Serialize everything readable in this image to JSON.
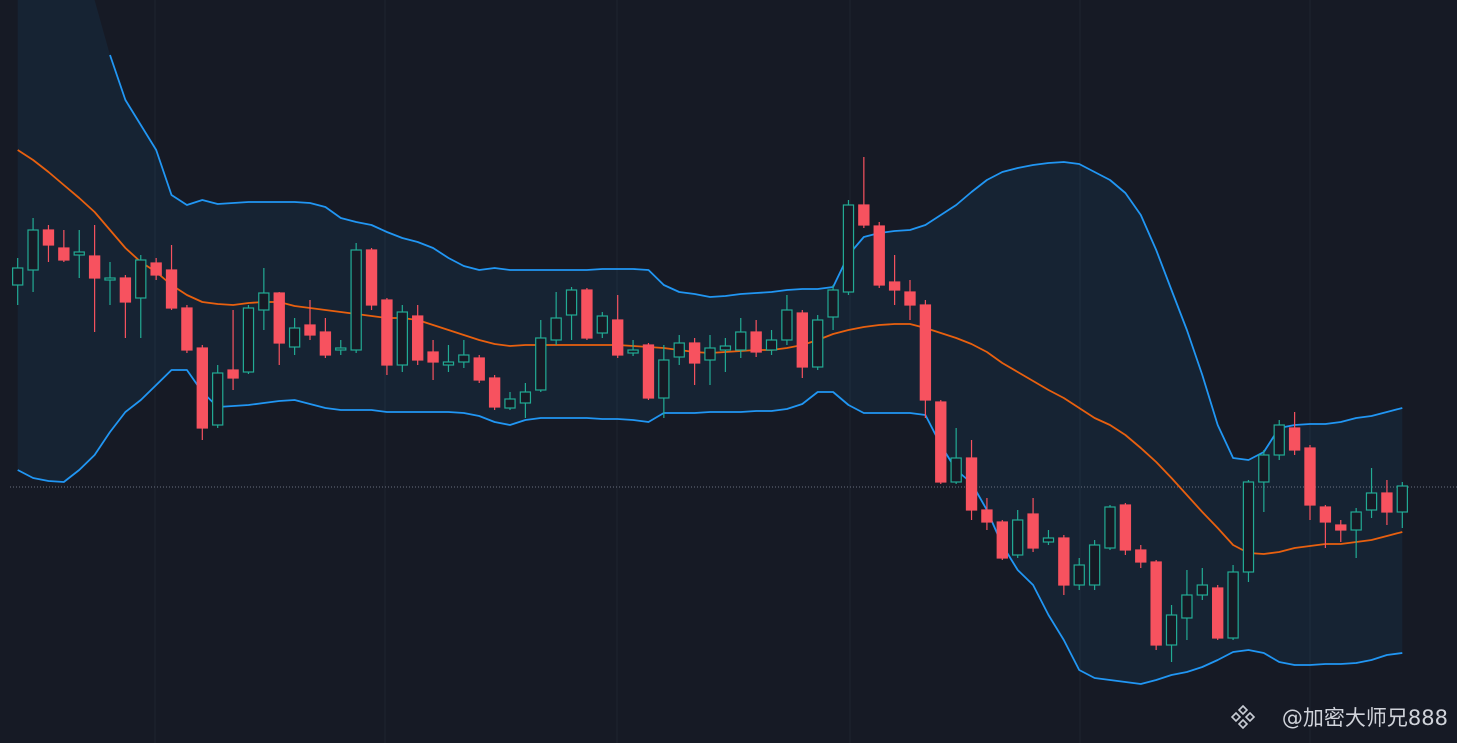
{
  "chart_data": {
    "type": "candlestick",
    "open": [
      458,
      473,
      513,
      495,
      488,
      487,
      463,
      465,
      445,
      480,
      473,
      435,
      395,
      318,
      373,
      371,
      433,
      450,
      396,
      418,
      411,
      393,
      393,
      493,
      443,
      378,
      427,
      391,
      378,
      381,
      385,
      365,
      335,
      340,
      353,
      403,
      428,
      453,
      410,
      423,
      390,
      398,
      345,
      386,
      400,
      383,
      393,
      393,
      411,
      393,
      403,
      430,
      376,
      426,
      451,
      538,
      517,
      461,
      451,
      438,
      341,
      261,
      285,
      233,
      221,
      188,
      229,
      201,
      205,
      158,
      158,
      195,
      238,
      193,
      181,
      98,
      125,
      148,
      155,
      105,
      171,
      261,
      288,
      315,
      295,
      236,
      218,
      213,
      233,
      250,
      231
    ],
    "high": [
      485,
      525,
      518,
      513,
      513,
      518,
      481,
      468,
      488,
      485,
      498,
      438,
      398,
      378,
      433,
      438,
      475,
      451,
      425,
      443,
      425,
      403,
      500,
      495,
      445,
      438,
      438,
      403,
      398,
      403,
      388,
      368,
      351,
      360,
      423,
      451,
      456,
      455,
      431,
      448,
      403,
      400,
      398,
      408,
      405,
      408,
      405,
      425,
      423,
      413,
      448,
      433,
      428,
      458,
      543,
      586,
      521,
      488,
      463,
      443,
      343,
      315,
      303,
      245,
      223,
      233,
      245,
      213,
      208,
      185,
      203,
      238,
      240,
      198,
      183,
      138,
      173,
      175,
      158,
      178,
      263,
      293,
      323,
      331,
      298,
      238,
      223,
      235,
      275,
      263,
      261
    ],
    "low": [
      438,
      451,
      481,
      481,
      465,
      411,
      438,
      405,
      405,
      463,
      433,
      390,
      303,
      315,
      353,
      369,
      413,
      378,
      388,
      403,
      385,
      388,
      390,
      433,
      368,
      371,
      378,
      363,
      371,
      375,
      360,
      333,
      333,
      325,
      351,
      398,
      403,
      403,
      405,
      385,
      387,
      343,
      325,
      378,
      358,
      358,
      371,
      385,
      386,
      388,
      398,
      365,
      373,
      413,
      448,
      515,
      455,
      438,
      423,
      325,
      259,
      259,
      223,
      213,
      183,
      185,
      191,
      198,
      148,
      153,
      153,
      193,
      188,
      175,
      93,
      81,
      103,
      143,
      103,
      103,
      161,
      231,
      283,
      288,
      223,
      195,
      201,
      185,
      225,
      218,
      215
    ],
    "close": [
      475,
      513,
      498,
      483,
      491,
      465,
      465,
      441,
      483,
      468,
      435,
      393,
      315,
      370,
      365,
      435,
      450,
      400,
      415,
      408,
      388,
      395,
      493,
      438,
      378,
      431,
      383,
      381,
      381,
      388,
      363,
      336,
      344,
      351,
      405,
      425,
      453,
      405,
      427,
      388,
      393,
      345,
      383,
      400,
      380,
      395,
      397,
      411,
      391,
      403,
      433,
      376,
      423,
      453,
      538,
      518,
      458,
      453,
      438,
      343,
      261,
      285,
      233,
      221,
      185,
      223,
      195,
      205,
      158,
      178,
      198,
      236,
      193,
      181,
      98,
      128,
      148,
      158,
      105,
      171,
      261,
      288,
      318,
      293,
      238,
      221,
      213,
      231,
      250,
      231,
      257
    ],
    "up_color": "#22ab94",
    "down_color": "#f7525f",
    "series": [
      {
        "color": "#2196f3",
        "values": [
          null,
          null,
          null,
          null,
          null,
          null,
          688,
          643,
          618,
          593,
          548,
          538,
          543,
          539,
          540,
          541,
          541,
          541,
          541,
          540,
          536,
          525,
          521,
          518,
          511,
          505,
          501,
          495,
          485,
          477,
          473,
          475,
          473,
          473,
          473,
          473,
          473,
          473,
          474,
          474,
          474,
          473,
          458,
          451,
          449,
          446,
          447,
          449,
          450,
          451,
          453,
          454,
          454,
          456,
          488,
          506,
          510,
          512,
          513,
          518,
          528,
          538,
          551,
          563,
          571,
          575,
          578,
          580,
          581,
          579,
          571,
          563,
          550,
          528,
          493,
          453,
          413,
          368,
          318,
          285,
          283,
          291,
          315,
          318,
          319,
          319,
          321,
          325,
          327,
          331,
          335
        ]
      },
      {
        "color": "#e8600f",
        "values": [
          593,
          583,
          571,
          558,
          545,
          531,
          513,
          495,
          481,
          471,
          458,
          448,
          441,
          439,
          438,
          440,
          441,
          441,
          437,
          435,
          433,
          431,
          429,
          427,
          425,
          425,
          423,
          418,
          413,
          408,
          403,
          399,
          397,
          398,
          398,
          398,
          398,
          398,
          398,
          398,
          397,
          396,
          395,
          393,
          391,
          390,
          391,
          392,
          393,
          393,
          395,
          398,
          403,
          409,
          413,
          416,
          418,
          419,
          419,
          415,
          410,
          405,
          399,
          391,
          380,
          371,
          362,
          353,
          345,
          335,
          325,
          318,
          308,
          295,
          281,
          265,
          248,
          231,
          215,
          198,
          190,
          189,
          191,
          195,
          197,
          199,
          199,
          201,
          203,
          207,
          211
        ]
      },
      {
        "color": "#2196f3",
        "values": [
          273,
          265,
          262,
          261,
          273,
          288,
          311,
          331,
          343,
          358,
          373,
          373,
          351,
          336,
          337,
          338,
          340,
          342,
          343,
          339,
          335,
          333,
          333,
          333,
          331,
          331,
          331,
          331,
          331,
          330,
          327,
          321,
          318,
          323,
          325,
          325,
          325,
          325,
          324,
          324,
          323,
          321,
          330,
          330,
          330,
          331,
          331,
          331,
          332,
          332,
          334,
          339,
          351,
          351,
          338,
          330,
          330,
          330,
          330,
          328,
          298,
          273,
          260,
          233,
          198,
          173,
          158,
          128,
          103,
          73,
          65,
          63,
          61,
          59,
          63,
          68,
          71,
          76,
          83,
          91,
          93,
          90,
          81,
          78,
          78,
          79,
          79,
          80,
          83,
          88,
          90
        ]
      }
    ],
    "ylim": [
      0,
      743
    ],
    "price_line": 256,
    "watermark": "@加密大师兄888"
  }
}
